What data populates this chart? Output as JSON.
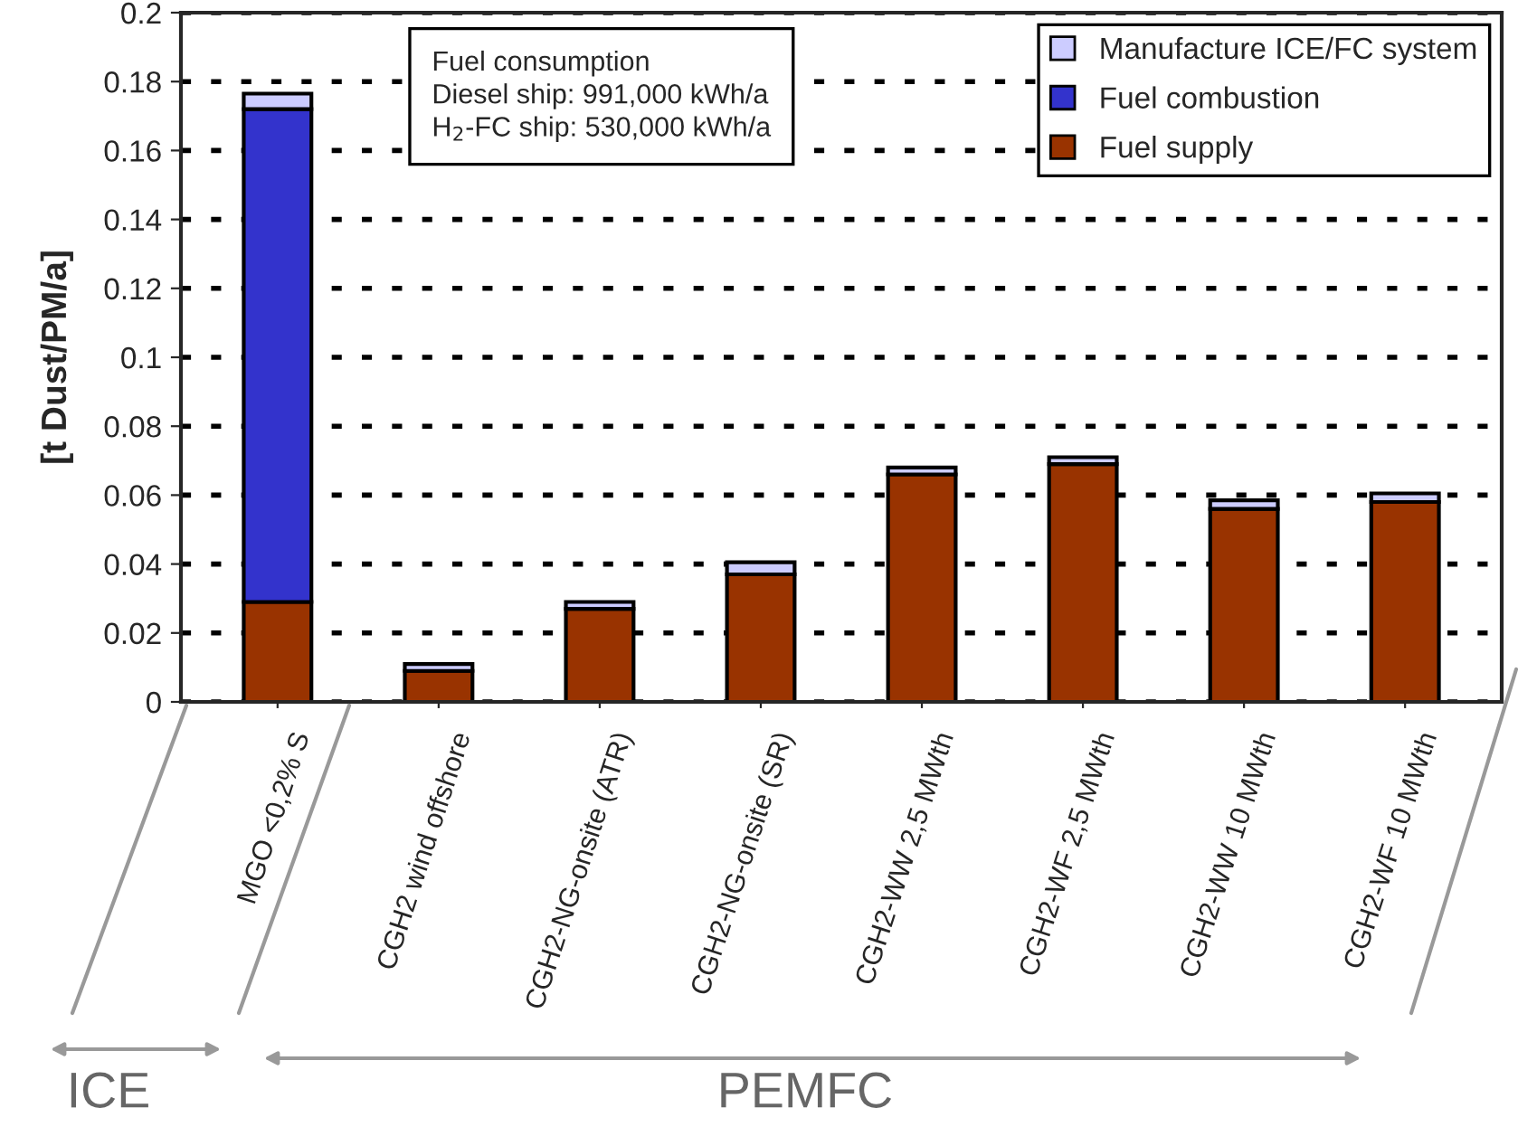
{
  "chart_data": {
    "type": "bar",
    "ylabel": "[t Dust/PM/a]",
    "categories": [
      "MGO <0,2% S",
      "CGH2 wind offshore",
      "CGH2-NG-onsite (ATR)",
      "CGH2-NG-onsite (SR)",
      "CGH2-WW 2,5 MWth",
      "CGH2-WF 2,5 MWth",
      "CGH2-WW 10 MWth",
      "CGH2-WF 10 MWth"
    ],
    "stacked": true,
    "series": [
      {
        "name": "Fuel supply",
        "color": "#993300",
        "values": [
          0.029,
          0.009,
          0.027,
          0.037,
          0.066,
          0.069,
          0.056,
          0.058
        ]
      },
      {
        "name": "Fuel combustion",
        "color": "#3333cc",
        "values": [
          0.143,
          null,
          null,
          null,
          null,
          null,
          null,
          null
        ]
      },
      {
        "name": "Manufacture ICE/FC system",
        "color": "#ccccff",
        "values": [
          0.0045,
          0.002,
          0.002,
          0.0035,
          0.002,
          0.002,
          0.0025,
          0.0025
        ]
      }
    ],
    "ylim": [
      0,
      0.2
    ],
    "yticks": [
      0,
      0.02,
      0.04,
      0.06,
      0.08,
      0.1,
      0.12,
      0.14,
      0.16,
      0.18,
      0.2
    ],
    "grid": "y",
    "legend": "top right",
    "annotations": [
      "Fuel consumption\nDiesel ship: 991,000 kWh/a\nH$_{2}$-FC ship: 530,000 kWh/a",
      "ICE",
      "PEMFC"
    ]
  }
}
